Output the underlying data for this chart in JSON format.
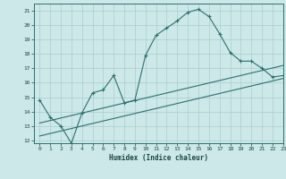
{
  "xlabel": "Humidex (Indice chaleur)",
  "bg_color": "#cde8e8",
  "grid_color": "#aacece",
  "line_color": "#2a7070",
  "xlim": [
    -0.5,
    23
  ],
  "ylim": [
    11.8,
    21.5
  ],
  "xtick_labels": [
    "0",
    "1",
    "2",
    "3",
    "4",
    "5",
    "6",
    "7",
    "8",
    "9",
    "10",
    "11",
    "12",
    "13",
    "14",
    "15",
    "16",
    "17",
    "18",
    "19",
    "20",
    "21",
    "22",
    "23"
  ],
  "xtick_pos": [
    0,
    1,
    2,
    3,
    4,
    5,
    6,
    7,
    8,
    9,
    10,
    11,
    12,
    13,
    14,
    15,
    16,
    17,
    18,
    19,
    20,
    21,
    22,
    23
  ],
  "ytick_pos": [
    12,
    13,
    14,
    15,
    16,
    17,
    18,
    19,
    20,
    21
  ],
  "line1_x": [
    0,
    1,
    2,
    3,
    4,
    5,
    6,
    7,
    8,
    9,
    10,
    11,
    12,
    13,
    14,
    15,
    16,
    17,
    18,
    19,
    20,
    21,
    22,
    23
  ],
  "line1_y": [
    14.8,
    13.6,
    13.0,
    11.8,
    13.9,
    15.3,
    15.5,
    16.5,
    14.6,
    14.8,
    17.9,
    19.3,
    19.8,
    20.3,
    20.9,
    21.1,
    20.6,
    19.4,
    18.1,
    17.5,
    17.5,
    17.0,
    16.4,
    16.5
  ],
  "line2_x": [
    0,
    23
  ],
  "line2_y": [
    13.2,
    17.2
  ],
  "line3_x": [
    0,
    23
  ],
  "line3_y": [
    12.3,
    16.3
  ]
}
